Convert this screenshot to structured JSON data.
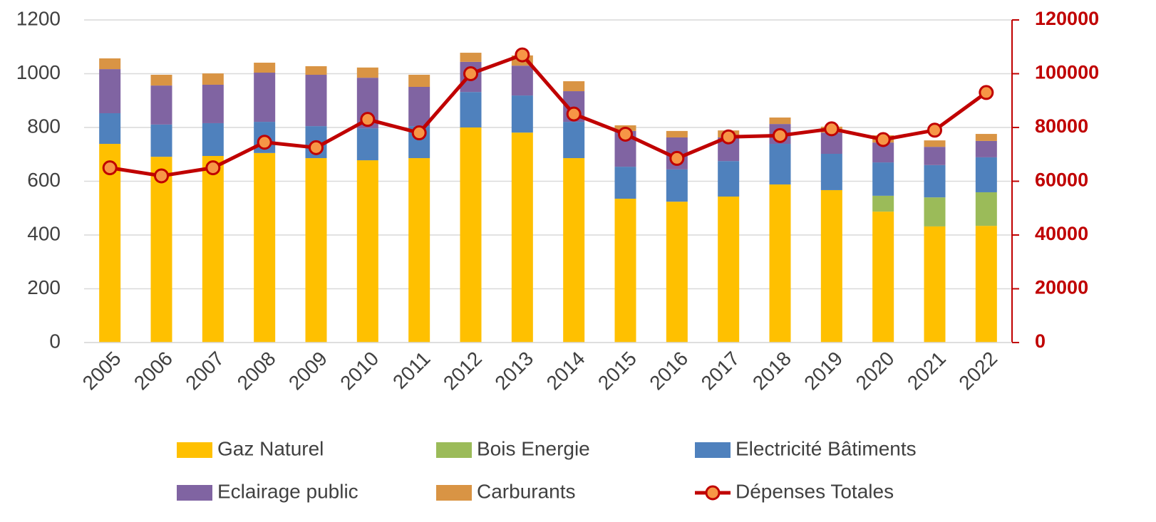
{
  "chart_data": {
    "type": "bar",
    "stacked": true,
    "categories": [
      "2005",
      "2006",
      "2007",
      "2008",
      "2009",
      "2010",
      "2011",
      "2012",
      "2013",
      "2014",
      "2015",
      "2016",
      "2017",
      "2018",
      "2019",
      "2020",
      "2021",
      "2022"
    ],
    "series": [
      {
        "name": "Gaz Naturel",
        "color": "#ffc000",
        "values": [
          739,
          691,
          694,
          705,
          686,
          678,
          686,
          800,
          781,
          686,
          535,
          524,
          543,
          588,
          567,
          487,
          432,
          434
        ]
      },
      {
        "name": "Bois Energie",
        "color": "#9bbb59",
        "values": [
          0,
          0,
          0,
          0,
          0,
          0,
          0,
          0,
          0,
          0,
          0,
          0,
          0,
          0,
          0,
          59,
          108,
          125
        ]
      },
      {
        "name": "Electricité Bâtiments",
        "color": "#4f81bd",
        "values": [
          114,
          120,
          122,
          116,
          119,
          119,
          119,
          132,
          138,
          135,
          119,
          120,
          132,
          151,
          135,
          124,
          120,
          130
        ]
      },
      {
        "name": "Eclairage public",
        "color": "#8064a2",
        "values": [
          164,
          145,
          143,
          183,
          191,
          188,
          146,
          112,
          111,
          114,
          133,
          119,
          88,
          74,
          79,
          74,
          68,
          61
        ]
      },
      {
        "name": "Carburants",
        "color": "#d99444",
        "values": [
          40,
          40,
          42,
          37,
          32,
          38,
          45,
          34,
          38,
          37,
          21,
          24,
          26,
          24,
          22,
          27,
          24,
          26
        ]
      },
      {
        "name": "Dépenses Totales",
        "color": "#c00000",
        "type": "line",
        "axis": "y2",
        "values": [
          65000,
          62000,
          65000,
          74500,
          72500,
          83000,
          78000,
          100000,
          107000,
          85000,
          77500,
          68500,
          76500,
          77000,
          79500,
          75500,
          79000,
          93000
        ]
      }
    ],
    "ylim": [
      0,
      1200
    ],
    "yticks": [
      0,
      200,
      400,
      600,
      800,
      1000,
      1200
    ],
    "y2lim": [
      0,
      120000
    ],
    "y2ticks": [
      0,
      20000,
      40000,
      60000,
      80000,
      100000,
      120000
    ],
    "grid": true,
    "legend": "bottom"
  }
}
